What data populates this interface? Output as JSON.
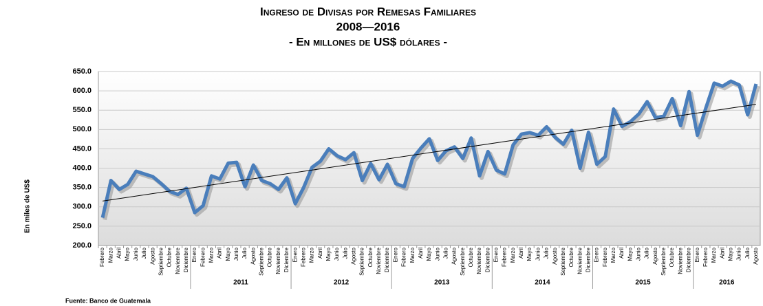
{
  "chart_data": {
    "type": "line",
    "title": "Ingreso de Divisas por Remesas Familiares",
    "subtitle": "2008—2016",
    "subtitle2": "- En millones de US$ dólares -",
    "y_label": "En miles de US$",
    "source": "Fuente: Banco de Guatemala",
    "categories": [
      "Febrero",
      "Marzo",
      "Abril",
      "Mayo",
      "Junio",
      "Julio",
      "Agosto",
      "Septiembre",
      "Octubre",
      "Noviembre",
      "Diciembre",
      "Enero",
      "Febrero",
      "Marzo",
      "Abril",
      "Mayo",
      "Junio",
      "Julio",
      "Agosto",
      "Septiembre",
      "Octubre",
      "Noviembre",
      "Diciembre",
      "Enero",
      "Febrero",
      "Marzo",
      "Abril",
      "Mayo",
      "Junio",
      "Julio",
      "Agosto",
      "Septiembre",
      "Octubre",
      "Noviembre",
      "Diciembre",
      "Enero",
      "Febrero",
      "Marzo",
      "Abril",
      "Mayo",
      "Junio",
      "Julio",
      "Agosto",
      "Septiembre",
      "Octubre",
      "Noviembre",
      "Diciembre",
      "Enero",
      "Febrero",
      "Marzo",
      "Abril",
      "Mayo",
      "Junio",
      "Julio",
      "Agosto",
      "Septiembre",
      "Octubre",
      "Noviembre",
      "Diciembre",
      "Enero",
      "Febrero",
      "Marzo",
      "Abril",
      "Mayo",
      "Junio",
      "Julio",
      "Agosto",
      "Septiembre",
      "Octubre",
      "Noviembre",
      "Diciembre",
      "Enero",
      "Febrero",
      "Marzo",
      "Abril",
      "Mayo",
      "Junio",
      "Julio",
      "Agosto"
    ],
    "year_labels": [
      null,
      "2011",
      "2012",
      "2013",
      "2014",
      "2015",
      "2016"
    ],
    "values": [
      272,
      368,
      345,
      358,
      392,
      385,
      378,
      360,
      340,
      332,
      348,
      285,
      303,
      380,
      372,
      413,
      415,
      352,
      408,
      368,
      360,
      345,
      375,
      308,
      350,
      402,
      418,
      450,
      432,
      422,
      440,
      368,
      412,
      370,
      410,
      360,
      352,
      425,
      452,
      476,
      420,
      445,
      455,
      425,
      478,
      380,
      443,
      395,
      385,
      460,
      488,
      492,
      485,
      507,
      480,
      462,
      498,
      400,
      493,
      410,
      430,
      553,
      508,
      520,
      540,
      572,
      530,
      535,
      580,
      510,
      598,
      485,
      555,
      620,
      612,
      625,
      615,
      538,
      618
    ],
    "color": "#4a7ebb",
    "trendline": {
      "start": 315,
      "end": 565,
      "color": "#000000"
    },
    "ylim": [
      200,
      650
    ],
    "yticks": [
      {
        "value": 200,
        "label": "200.0"
      },
      {
        "value": 250,
        "label": "250.0"
      },
      {
        "value": 300,
        "label": "300.0"
      },
      {
        "value": 350,
        "label": "350.0"
      },
      {
        "value": 400,
        "label": "400.0"
      },
      {
        "value": 450,
        "label": "450.0"
      },
      {
        "value": 500,
        "label": "500.0"
      },
      {
        "value": 550,
        "label": "550.0"
      },
      {
        "value": 600,
        "label": "600.0"
      },
      {
        "value": 650,
        "label": "650.0"
      }
    ],
    "grid": true
  }
}
